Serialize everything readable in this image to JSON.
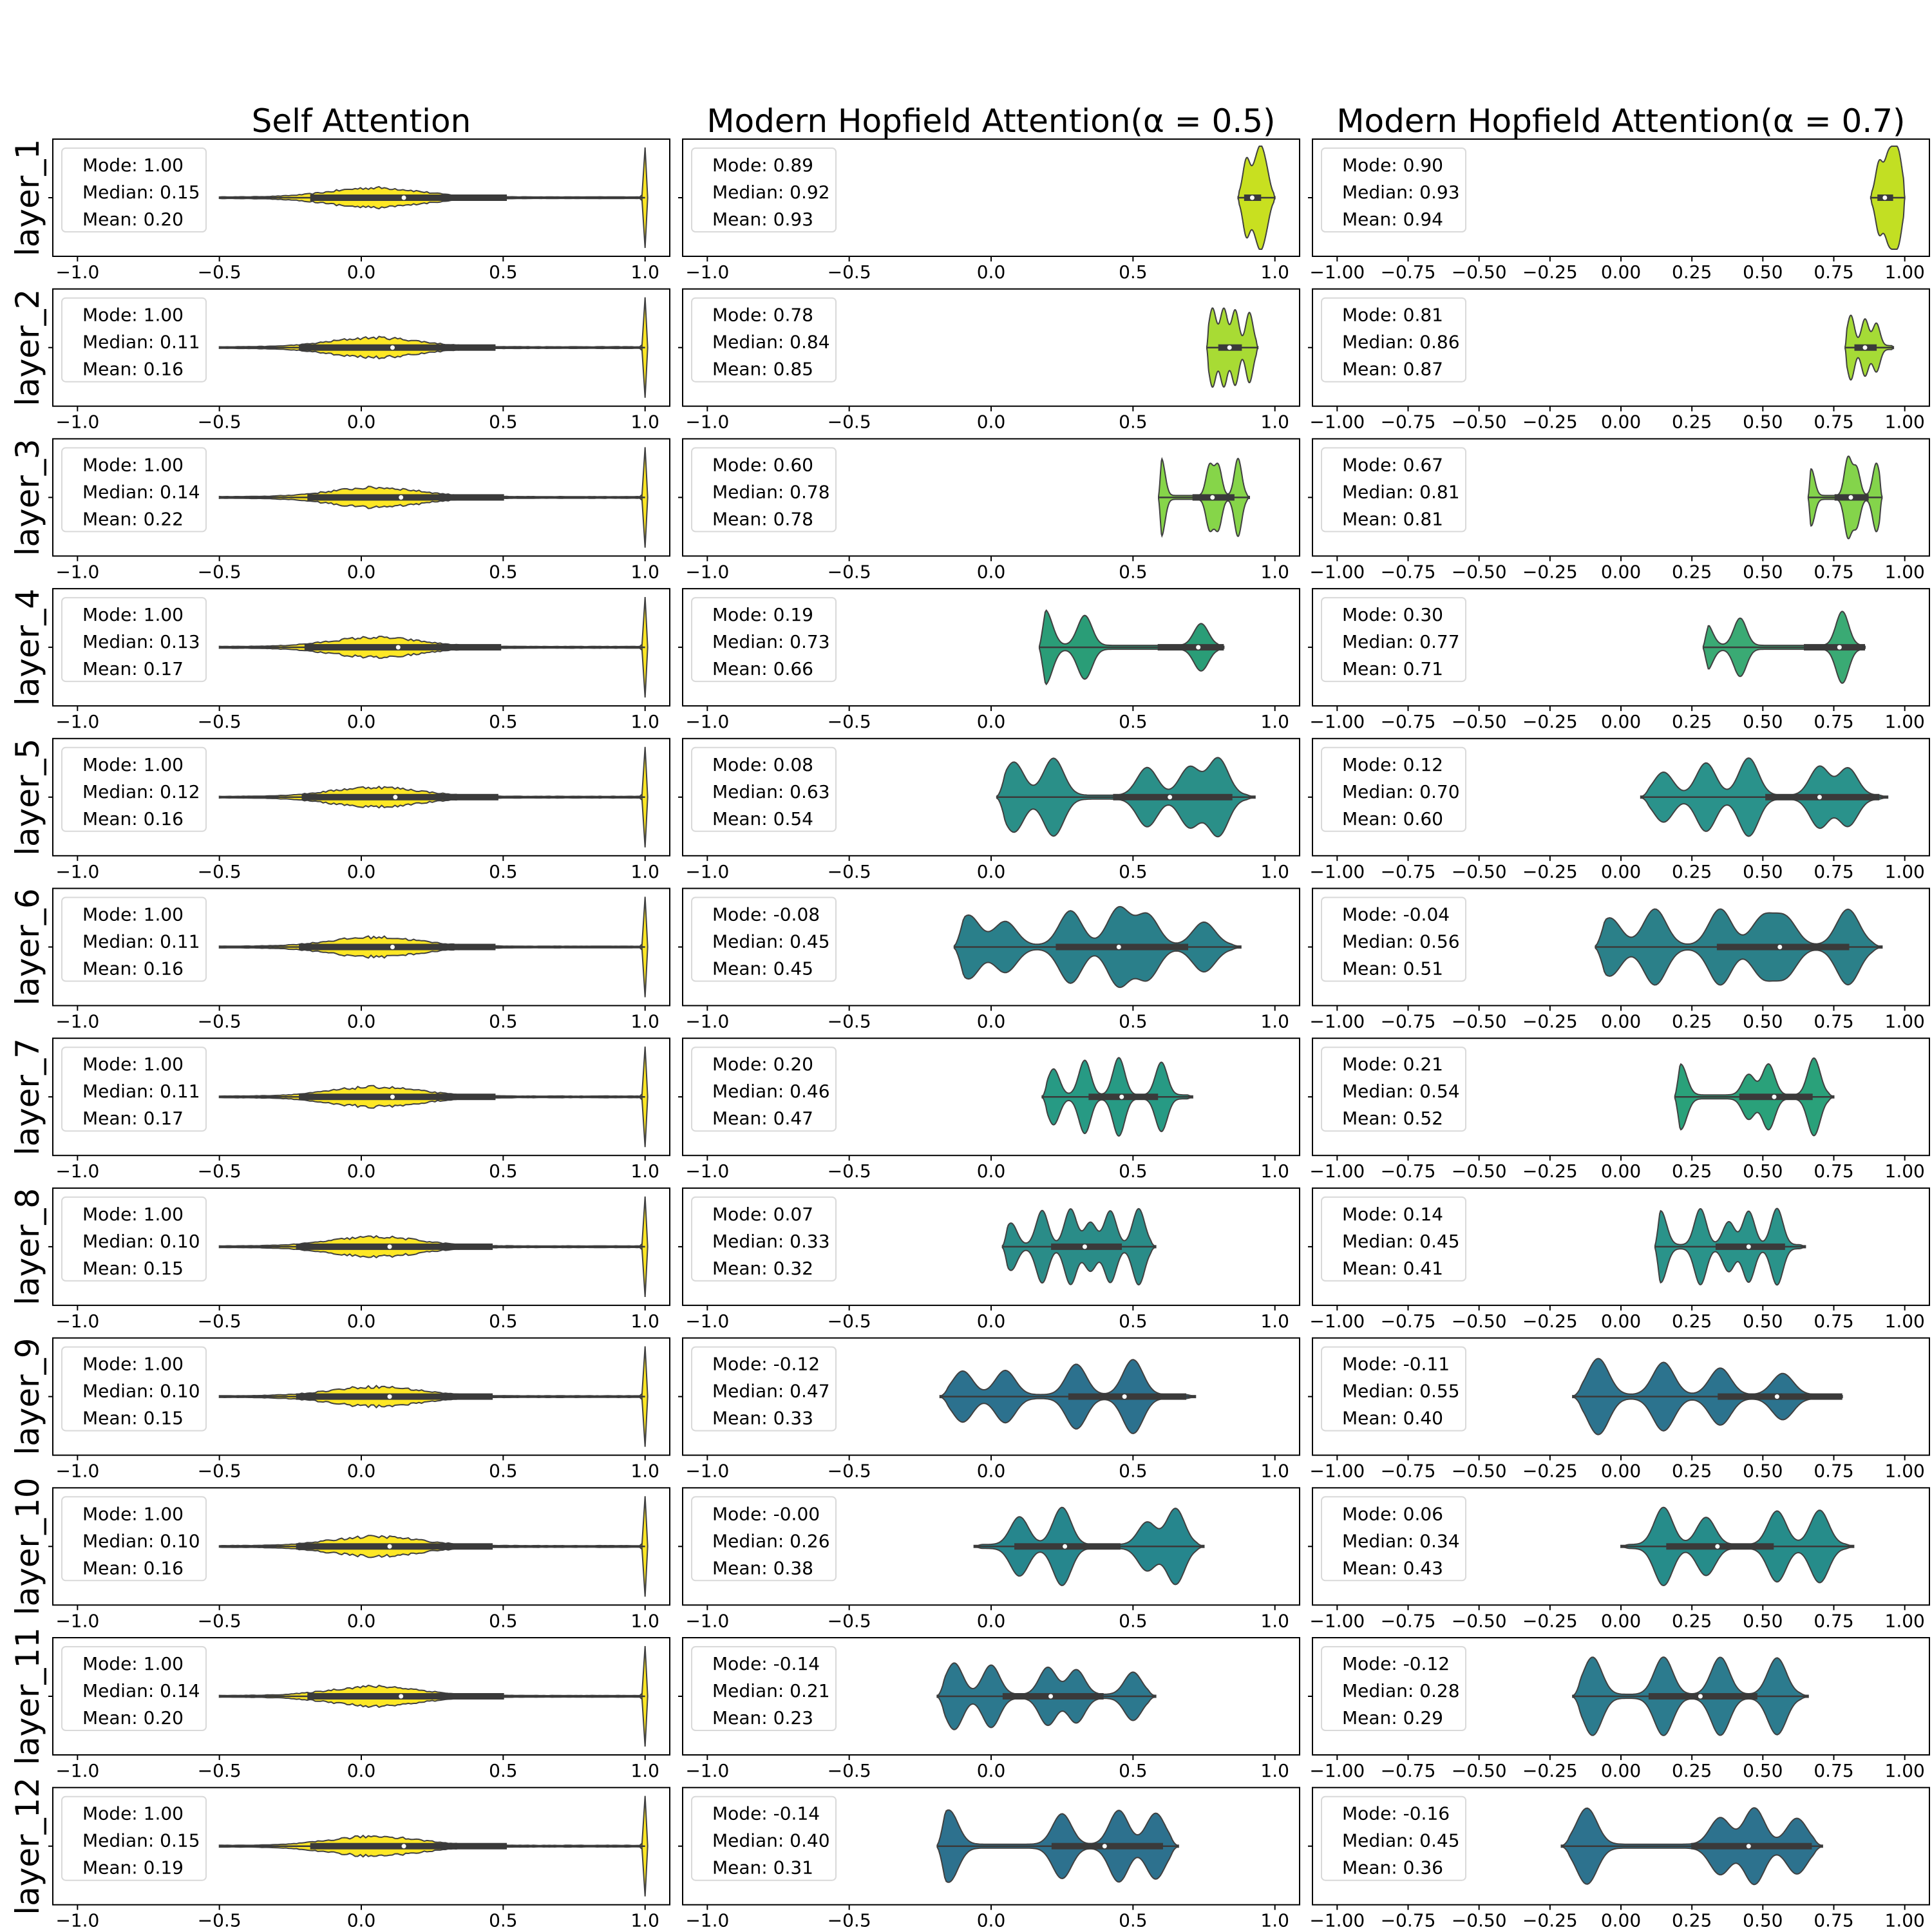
{
  "chart_data": {
    "type": "violin",
    "title": "",
    "columns": [
      {
        "title": "Self Attention",
        "xlim": [
          -1.0,
          1.0
        ],
        "ticks": [
          -1.0,
          -0.5,
          0.0,
          0.5,
          1.0
        ],
        "tick_labels": [
          "−1.0",
          "−0.5",
          "0.0",
          "0.5",
          "1.0"
        ]
      },
      {
        "title": "Modern Hopfield Attention(α = 0.5)",
        "xlim": [
          -1.0,
          1.0
        ],
        "ticks": [
          -1.0,
          -0.5,
          0.0,
          0.5,
          1.0
        ],
        "tick_labels": [
          "−1.0",
          "−0.5",
          "0.0",
          "0.5",
          "1.0"
        ]
      },
      {
        "title": "Modern Hopfield Attention(α = 0.7)",
        "xlim": [
          -1.0,
          1.0
        ],
        "ticks": [
          -1.0,
          -0.75,
          -0.5,
          -0.25,
          0.0,
          0.25,
          0.5,
          0.75,
          1.0
        ],
        "tick_labels": [
          "−1.00",
          "−0.75",
          "−0.50",
          "−0.25",
          "0.00",
          "0.25",
          "0.50",
          "0.75",
          "1.00"
        ]
      }
    ],
    "rows": [
      "layer_1",
      "layer_2",
      "layer_3",
      "layer_4",
      "layer_5",
      "layer_6",
      "layer_7",
      "layer_8",
      "layer_9",
      "layer_10",
      "layer_11",
      "layer_12"
    ],
    "stats": [
      [
        {
          "mode": "1.00",
          "median": "0.15",
          "mean": "0.20"
        },
        {
          "mode": "0.89",
          "median": "0.92",
          "mean": "0.93"
        },
        {
          "mode": "0.90",
          "median": "0.93",
          "mean": "0.94"
        }
      ],
      [
        {
          "mode": "1.00",
          "median": "0.11",
          "mean": "0.16"
        },
        {
          "mode": "0.78",
          "median": "0.84",
          "mean": "0.85"
        },
        {
          "mode": "0.81",
          "median": "0.86",
          "mean": "0.87"
        }
      ],
      [
        {
          "mode": "1.00",
          "median": "0.14",
          "mean": "0.22"
        },
        {
          "mode": "0.60",
          "median": "0.78",
          "mean": "0.78"
        },
        {
          "mode": "0.67",
          "median": "0.81",
          "mean": "0.81"
        }
      ],
      [
        {
          "mode": "1.00",
          "median": "0.13",
          "mean": "0.17"
        },
        {
          "mode": "0.19",
          "median": "0.73",
          "mean": "0.66"
        },
        {
          "mode": "0.30",
          "median": "0.77",
          "mean": "0.71"
        }
      ],
      [
        {
          "mode": "1.00",
          "median": "0.12",
          "mean": "0.16"
        },
        {
          "mode": "0.08",
          "median": "0.63",
          "mean": "0.54"
        },
        {
          "mode": "0.12",
          "median": "0.70",
          "mean": "0.60"
        }
      ],
      [
        {
          "mode": "1.00",
          "median": "0.11",
          "mean": "0.16"
        },
        {
          "mode": "-0.08",
          "median": "0.45",
          "mean": "0.45"
        },
        {
          "mode": "-0.04",
          "median": "0.56",
          "mean": "0.51"
        }
      ],
      [
        {
          "mode": "1.00",
          "median": "0.11",
          "mean": "0.17"
        },
        {
          "mode": "0.20",
          "median": "0.46",
          "mean": "0.47"
        },
        {
          "mode": "0.21",
          "median": "0.54",
          "mean": "0.52"
        }
      ],
      [
        {
          "mode": "1.00",
          "median": "0.10",
          "mean": "0.15"
        },
        {
          "mode": "0.07",
          "median": "0.33",
          "mean": "0.32"
        },
        {
          "mode": "0.14",
          "median": "0.45",
          "mean": "0.41"
        }
      ],
      [
        {
          "mode": "1.00",
          "median": "0.10",
          "mean": "0.15"
        },
        {
          "mode": "-0.12",
          "median": "0.47",
          "mean": "0.33"
        },
        {
          "mode": "-0.11",
          "median": "0.55",
          "mean": "0.40"
        }
      ],
      [
        {
          "mode": "1.00",
          "median": "0.10",
          "mean": "0.16"
        },
        {
          "mode": "-0.00",
          "median": "0.26",
          "mean": "0.38"
        },
        {
          "mode": "0.06",
          "median": "0.34",
          "mean": "0.43"
        }
      ],
      [
        {
          "mode": "1.00",
          "median": "0.14",
          "mean": "0.20"
        },
        {
          "mode": "-0.14",
          "median": "0.21",
          "mean": "0.23"
        },
        {
          "mode": "-0.12",
          "median": "0.28",
          "mean": "0.29"
        }
      ],
      [
        {
          "mode": "1.00",
          "median": "0.15",
          "mean": "0.19"
        },
        {
          "mode": "-0.14",
          "median": "0.40",
          "mean": "0.31"
        },
        {
          "mode": "-0.16",
          "median": "0.45",
          "mean": "0.36"
        }
      ]
    ],
    "range_min": [
      [
        -0.5,
        0.87,
        0.88
      ],
      [
        -0.5,
        0.76,
        0.79
      ],
      [
        -0.5,
        0.59,
        0.66
      ],
      [
        -0.5,
        0.17,
        0.29
      ],
      [
        -0.5,
        0.02,
        0.07
      ],
      [
        -0.5,
        -0.13,
        -0.09
      ],
      [
        -0.5,
        0.18,
        0.19
      ],
      [
        -0.5,
        0.04,
        0.12
      ],
      [
        -0.5,
        -0.18,
        -0.17
      ],
      [
        -0.5,
        -0.06,
        0.0
      ],
      [
        -0.5,
        -0.19,
        -0.17
      ],
      [
        -0.5,
        -0.19,
        -0.21
      ]
    ],
    "range_max": [
      [
        1.0,
        1.0,
        1.0
      ],
      [
        1.0,
        0.94,
        0.96
      ],
      [
        1.0,
        0.91,
        0.92
      ],
      [
        1.0,
        0.82,
        0.86
      ],
      [
        1.0,
        0.93,
        0.94
      ],
      [
        1.0,
        0.88,
        0.92
      ],
      [
        1.0,
        0.71,
        0.75
      ],
      [
        1.0,
        0.58,
        0.65
      ],
      [
        1.0,
        0.72,
        0.78
      ],
      [
        1.0,
        0.75,
        0.82
      ],
      [
        1.0,
        0.58,
        0.66
      ],
      [
        1.0,
        0.66,
        0.71
      ]
    ],
    "peak_values": [
      [
        [
          0.0,
          1.0
        ],
        [
          0.9,
          0.93,
          0.95,
          0.97
        ],
        [
          0.91,
          0.94,
          0.96,
          0.98
        ]
      ],
      [
        [
          0.0,
          1.0
        ],
        [
          0.78,
          0.82,
          0.86,
          0.91
        ],
        [
          0.81,
          0.86,
          0.9
        ]
      ],
      [
        [
          0.0,
          1.0
        ],
        [
          0.6,
          0.77,
          0.8,
          0.87
        ],
        [
          0.67,
          0.8,
          0.83,
          0.9
        ]
      ],
      [
        [
          0.0,
          1.0
        ],
        [
          0.19,
          0.33,
          0.74
        ],
        [
          0.3,
          0.42,
          0.78
        ]
      ],
      [
        [
          0.0,
          1.0
        ],
        [
          0.08,
          0.22,
          0.55,
          0.7,
          0.8
        ],
        [
          0.15,
          0.3,
          0.45,
          0.7,
          0.8
        ]
      ],
      [
        [
          0.0,
          1.0
        ],
        [
          -0.08,
          0.05,
          0.28,
          0.45,
          0.55,
          0.75
        ],
        [
          -0.04,
          0.12,
          0.35,
          0.5,
          0.58,
          0.8
        ]
      ],
      [
        [
          0.0,
          1.0
        ],
        [
          0.22,
          0.33,
          0.45,
          0.6
        ],
        [
          0.21,
          0.45,
          0.52,
          0.68
        ]
      ],
      [
        [
          0.0,
          1.0
        ],
        [
          0.07,
          0.18,
          0.28,
          0.35,
          0.42,
          0.52
        ],
        [
          0.14,
          0.28,
          0.38,
          0.45,
          0.55
        ]
      ],
      [
        [
          0.0,
          1.0
        ],
        [
          -0.1,
          0.05,
          0.3,
          0.5
        ],
        [
          -0.08,
          0.15,
          0.35,
          0.57
        ]
      ],
      [
        [
          0.0,
          1.0
        ],
        [
          0.1,
          0.25,
          0.55,
          0.65
        ],
        [
          0.15,
          0.3,
          0.55,
          0.7
        ]
      ],
      [
        [
          0.0,
          1.0
        ],
        [
          -0.13,
          0.0,
          0.2,
          0.3,
          0.5
        ],
        [
          -0.1,
          0.15,
          0.35,
          0.55
        ]
      ],
      [
        [
          0.0,
          1.0
        ],
        [
          -0.15,
          0.25,
          0.45,
          0.58
        ],
        [
          -0.12,
          0.35,
          0.47,
          0.62
        ]
      ]
    ],
    "colors": [
      [
        "#fde725",
        "#c8e020",
        "#c2df23"
      ],
      [
        "#fde725",
        "#a8db34",
        "#a5db36"
      ],
      [
        "#fde725",
        "#86d549",
        "#84d44b"
      ],
      [
        "#fde725",
        "#2a9d77",
        "#3aaa74"
      ],
      [
        "#fde725",
        "#2a8f88",
        "#2a928b"
      ],
      [
        "#fde725",
        "#2a7f8a",
        "#2b8089"
      ],
      [
        "#fde725",
        "#279a84",
        "#2aa17a"
      ],
      [
        "#fde725",
        "#2a8c88",
        "#2a938a"
      ],
      [
        "#fde725",
        "#2c718e",
        "#2c738e"
      ],
      [
        "#fde725",
        "#26868d",
        "#268c8a"
      ],
      [
        "#fde725",
        "#2c788e",
        "#2c7b8e"
      ],
      [
        "#fde725",
        "#2d718e",
        "#2d728e"
      ]
    ],
    "xlabel": "",
    "ylabel": ""
  }
}
